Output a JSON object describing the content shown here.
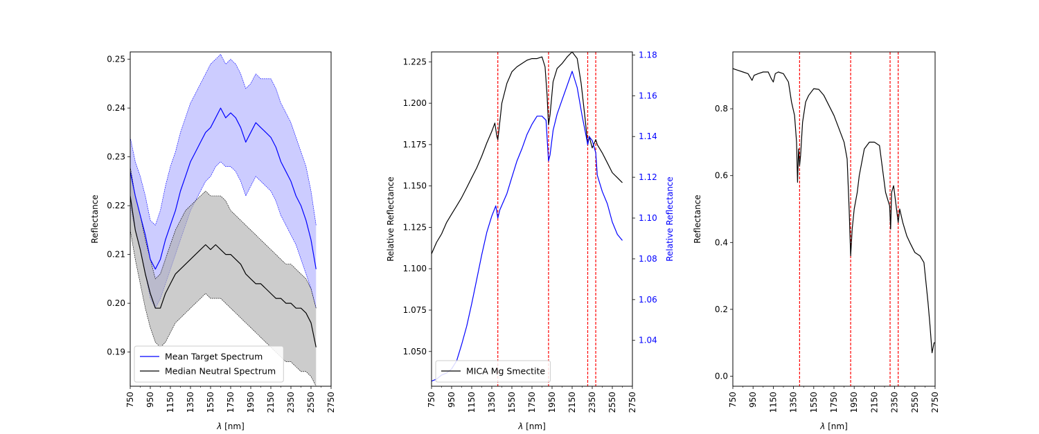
{
  "chart_data": [
    {
      "type": "line",
      "xlabel_prefix": "λ",
      "xlabel_suffix": " [nm]",
      "ylabel": "Reflectance",
      "xlim": [
        750,
        2750
      ],
      "ylim": [
        0.183,
        0.2515
      ],
      "xticks": [
        750,
        950,
        1150,
        1350,
        1550,
        1750,
        1950,
        2150,
        2350,
        2550,
        2750
      ],
      "yticks": [
        0.19,
        0.2,
        0.21,
        0.22,
        0.23,
        0.24,
        0.25
      ],
      "ytick_labels": [
        "0.19",
        "0.20",
        "0.21",
        "0.22",
        "0.23",
        "0.24",
        "0.25"
      ],
      "legend": {
        "loc": "lower-left",
        "entries": [
          {
            "label": "Mean Target Spectrum",
            "color": "#0000ff"
          },
          {
            "label": "Median Neutral Spectrum",
            "color": "#000000"
          }
        ]
      },
      "series": [
        {
          "name": "Mean Target Spectrum",
          "color": "#0000ff",
          "band_color": "#ccccff",
          "x": [
            750,
            800,
            850,
            900,
            950,
            1000,
            1050,
            1100,
            1150,
            1200,
            1250,
            1300,
            1350,
            1400,
            1450,
            1500,
            1550,
            1600,
            1650,
            1700,
            1750,
            1800,
            1850,
            1900,
            1950,
            2000,
            2050,
            2100,
            2150,
            2200,
            2250,
            2300,
            2350,
            2400,
            2450,
            2500,
            2550,
            2600
          ],
          "y": [
            0.227,
            0.222,
            0.218,
            0.214,
            0.209,
            0.207,
            0.209,
            0.213,
            0.216,
            0.219,
            0.223,
            0.226,
            0.229,
            0.231,
            0.233,
            0.235,
            0.236,
            0.238,
            0.24,
            0.238,
            0.239,
            0.238,
            0.236,
            0.233,
            0.235,
            0.237,
            0.236,
            0.235,
            0.234,
            0.232,
            0.229,
            0.227,
            0.225,
            0.222,
            0.22,
            0.217,
            0.213,
            0.207
          ],
          "upper": [
            0.234,
            0.229,
            0.226,
            0.222,
            0.217,
            0.216,
            0.219,
            0.224,
            0.228,
            0.231,
            0.235,
            0.238,
            0.241,
            0.243,
            0.245,
            0.247,
            0.249,
            0.25,
            0.251,
            0.249,
            0.25,
            0.249,
            0.247,
            0.244,
            0.245,
            0.247,
            0.246,
            0.246,
            0.246,
            0.244,
            0.241,
            0.239,
            0.237,
            0.234,
            0.231,
            0.228,
            0.223,
            0.216
          ],
          "lower": [
            0.22,
            0.215,
            0.211,
            0.206,
            0.201,
            0.199,
            0.201,
            0.204,
            0.207,
            0.21,
            0.213,
            0.216,
            0.219,
            0.221,
            0.223,
            0.225,
            0.226,
            0.228,
            0.229,
            0.228,
            0.228,
            0.227,
            0.225,
            0.222,
            0.224,
            0.226,
            0.225,
            0.224,
            0.223,
            0.221,
            0.218,
            0.216,
            0.214,
            0.212,
            0.209,
            0.206,
            0.203,
            0.199
          ]
        },
        {
          "name": "Median Neutral Spectrum",
          "color": "#000000",
          "band_color": "#b0b0b0",
          "x": [
            750,
            800,
            850,
            900,
            950,
            1000,
            1050,
            1100,
            1150,
            1200,
            1250,
            1300,
            1350,
            1400,
            1450,
            1500,
            1550,
            1600,
            1650,
            1700,
            1750,
            1800,
            1850,
            1900,
            1950,
            2000,
            2050,
            2100,
            2150,
            2200,
            2250,
            2300,
            2350,
            2400,
            2450,
            2500,
            2550,
            2600
          ],
          "y": [
            0.222,
            0.215,
            0.211,
            0.206,
            0.202,
            0.199,
            0.199,
            0.202,
            0.204,
            0.206,
            0.207,
            0.208,
            0.209,
            0.21,
            0.211,
            0.212,
            0.211,
            0.212,
            0.211,
            0.21,
            0.21,
            0.209,
            0.208,
            0.206,
            0.205,
            0.204,
            0.204,
            0.203,
            0.202,
            0.201,
            0.201,
            0.2,
            0.2,
            0.199,
            0.199,
            0.198,
            0.196,
            0.191
          ],
          "upper": [
            0.228,
            0.222,
            0.218,
            0.213,
            0.209,
            0.205,
            0.206,
            0.209,
            0.212,
            0.215,
            0.217,
            0.219,
            0.22,
            0.221,
            0.222,
            0.223,
            0.222,
            0.222,
            0.222,
            0.221,
            0.219,
            0.218,
            0.217,
            0.216,
            0.215,
            0.214,
            0.213,
            0.212,
            0.211,
            0.21,
            0.209,
            0.208,
            0.208,
            0.207,
            0.206,
            0.205,
            0.203,
            0.199
          ],
          "lower": [
            0.215,
            0.209,
            0.204,
            0.199,
            0.195,
            0.192,
            0.191,
            0.192,
            0.194,
            0.196,
            0.197,
            0.198,
            0.199,
            0.2,
            0.201,
            0.202,
            0.201,
            0.201,
            0.201,
            0.2,
            0.199,
            0.198,
            0.197,
            0.196,
            0.195,
            0.194,
            0.193,
            0.192,
            0.191,
            0.19,
            0.189,
            0.188,
            0.188,
            0.187,
            0.186,
            0.186,
            0.185,
            0.183
          ]
        }
      ]
    },
    {
      "type": "line",
      "xlabel_prefix": "λ",
      "xlabel_suffix": " [nm]",
      "ylabel": "Relative Reflectance",
      "ylabel_right": "Relative Reflectance",
      "xlim": [
        750,
        2750
      ],
      "ylim": [
        1.029,
        1.231
      ],
      "ylim_right": [
        1.0175,
        1.1815
      ],
      "xticks": [
        750,
        950,
        1150,
        1350,
        1550,
        1750,
        1950,
        2150,
        2350,
        2550,
        2750
      ],
      "yticks": [
        1.05,
        1.075,
        1.1,
        1.125,
        1.15,
        1.175,
        1.2,
        1.225
      ],
      "ytick_labels": [
        "1.050",
        "1.075",
        "1.100",
        "1.125",
        "1.150",
        "1.175",
        "1.200",
        "1.225"
      ],
      "yticks_right": [
        1.04,
        1.06,
        1.08,
        1.1,
        1.12,
        1.14,
        1.16,
        1.18
      ],
      "ytick_labels_right": [
        "1.04",
        "1.06",
        "1.08",
        "1.10",
        "1.12",
        "1.14",
        "1.16",
        "1.18"
      ],
      "right_axis_color": "#0000ff",
      "vlines": [
        1410,
        1915,
        2305,
        2385
      ],
      "vline_color": "#ff0000",
      "legend": {
        "loc": "lower-left",
        "entries": [
          {
            "label": "MICA Mg Smectite",
            "color": "#000000"
          }
        ]
      },
      "series": [
        {
          "name": "MICA Mg Smectite",
          "axis": "left",
          "color": "#000000",
          "x": [
            750,
            800,
            850,
            900,
            950,
            1000,
            1050,
            1100,
            1150,
            1200,
            1250,
            1300,
            1350,
            1380,
            1400,
            1410,
            1420,
            1450,
            1500,
            1550,
            1600,
            1650,
            1700,
            1750,
            1800,
            1850,
            1880,
            1900,
            1915,
            1930,
            1960,
            2000,
            2050,
            2100,
            2150,
            2200,
            2240,
            2280,
            2305,
            2320,
            2350,
            2385,
            2400,
            2450,
            2500,
            2550,
            2600,
            2650
          ],
          "y": [
            1.109,
            1.116,
            1.121,
            1.128,
            1.133,
            1.138,
            1.143,
            1.149,
            1.155,
            1.161,
            1.168,
            1.176,
            1.183,
            1.188,
            1.18,
            1.178,
            1.183,
            1.2,
            1.212,
            1.219,
            1.222,
            1.224,
            1.226,
            1.227,
            1.227,
            1.228,
            1.222,
            1.205,
            1.187,
            1.193,
            1.213,
            1.221,
            1.224,
            1.228,
            1.231,
            1.227,
            1.212,
            1.19,
            1.175,
            1.18,
            1.173,
            1.178,
            1.175,
            1.17,
            1.164,
            1.158,
            1.155,
            1.152
          ]
        },
        {
          "name": "",
          "axis": "right",
          "color": "#0000ff",
          "x": [
            750,
            800,
            850,
            900,
            950,
            1000,
            1050,
            1100,
            1150,
            1200,
            1250,
            1300,
            1350,
            1390,
            1410,
            1430,
            1500,
            1550,
            1600,
            1650,
            1700,
            1750,
            1800,
            1850,
            1890,
            1915,
            1930,
            1960,
            2000,
            2050,
            2100,
            2150,
            2200,
            2250,
            2290,
            2305,
            2320,
            2350,
            2385,
            2400,
            2450,
            2500,
            2550,
            2600,
            2650
          ],
          "y": [
            1.02,
            1.021,
            1.023,
            1.024,
            1.026,
            1.03,
            1.038,
            1.047,
            1.058,
            1.07,
            1.082,
            1.093,
            1.101,
            1.106,
            1.1,
            1.104,
            1.112,
            1.12,
            1.128,
            1.134,
            1.141,
            1.146,
            1.15,
            1.15,
            1.148,
            1.128,
            1.131,
            1.143,
            1.151,
            1.158,
            1.165,
            1.172,
            1.164,
            1.15,
            1.14,
            1.136,
            1.14,
            1.138,
            1.132,
            1.121,
            1.113,
            1.107,
            1.098,
            1.092,
            1.089
          ]
        }
      ]
    },
    {
      "type": "line",
      "xlabel_prefix": "λ",
      "xlabel_suffix": " [nm]",
      "ylabel": "Reflectance",
      "xlim": [
        750,
        2750
      ],
      "ylim": [
        -0.03,
        0.97
      ],
      "xticks": [
        750,
        950,
        1150,
        1350,
        1550,
        1750,
        1950,
        2150,
        2350,
        2550,
        2750
      ],
      "yticks": [
        0.0,
        0.2,
        0.4,
        0.6,
        0.8
      ],
      "ytick_labels": [
        "0.0",
        "0.2",
        "0.4",
        "0.6",
        "0.8"
      ],
      "vlines": [
        1410,
        1915,
        2305,
        2385
      ],
      "vline_color": "#ff0000",
      "series": [
        {
          "name": "",
          "color": "#000000",
          "x": [
            750,
            800,
            850,
            900,
            920,
            940,
            960,
            1000,
            1050,
            1100,
            1130,
            1150,
            1170,
            1200,
            1250,
            1300,
            1330,
            1360,
            1380,
            1390,
            1400,
            1410,
            1420,
            1440,
            1470,
            1500,
            1550,
            1600,
            1650,
            1700,
            1750,
            1800,
            1850,
            1880,
            1900,
            1915,
            1930,
            1950,
            1980,
            2000,
            2050,
            2100,
            2150,
            2200,
            2230,
            2260,
            2290,
            2300,
            2310,
            2320,
            2340,
            2360,
            2385,
            2400,
            2430,
            2470,
            2500,
            2550,
            2600,
            2640,
            2680,
            2700,
            2720,
            2740,
            2750
          ],
          "y": [
            0.92,
            0.915,
            0.91,
            0.905,
            0.895,
            0.885,
            0.9,
            0.905,
            0.91,
            0.91,
            0.89,
            0.88,
            0.905,
            0.91,
            0.905,
            0.88,
            0.82,
            0.78,
            0.7,
            0.58,
            0.68,
            0.63,
            0.66,
            0.76,
            0.82,
            0.84,
            0.86,
            0.858,
            0.84,
            0.81,
            0.78,
            0.74,
            0.7,
            0.65,
            0.5,
            0.36,
            0.44,
            0.5,
            0.55,
            0.6,
            0.68,
            0.7,
            0.7,
            0.69,
            0.62,
            0.55,
            0.52,
            0.51,
            0.44,
            0.55,
            0.57,
            0.52,
            0.46,
            0.5,
            0.46,
            0.42,
            0.4,
            0.37,
            0.36,
            0.34,
            0.22,
            0.15,
            0.07,
            0.1,
            0.1
          ]
        }
      ]
    }
  ]
}
